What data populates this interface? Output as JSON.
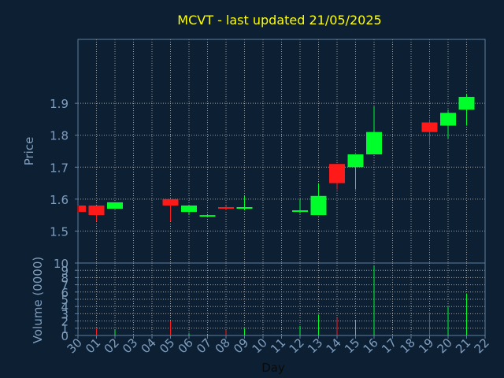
{
  "colors": {
    "background": "#0d1f33",
    "title": "#ffff00",
    "axis_text": "#7f9fbf",
    "frame": "#5f7f9f",
    "grid": "#a0a0a0",
    "up": "#00ff2a",
    "down": "#ff1a1a",
    "volume_tick": "#a0a0a0"
  },
  "chart_data": [
    {
      "type": "candlestick",
      "title": "MCVT - last updated 21/05/2025",
      "ylabel": "Price",
      "ylim": [
        1.4,
        2.1
      ],
      "yticks": [
        1.5,
        1.6,
        1.7,
        1.8,
        1.9
      ],
      "ytick_labels": [
        "1.5",
        "1.6",
        "1.7",
        "1.8",
        "1.9"
      ],
      "grid": true,
      "candles": [
        {
          "day": "30",
          "open": 1.58,
          "high": 1.58,
          "low": 1.56,
          "close": 1.56
        },
        {
          "day": "01",
          "open": 1.58,
          "high": 1.58,
          "low": 1.53,
          "close": 1.55
        },
        {
          "day": "02",
          "open": 1.57,
          "high": 1.59,
          "low": 1.57,
          "close": 1.59
        },
        {
          "day": "05",
          "open": 1.6,
          "high": 1.6,
          "low": 1.53,
          "close": 1.58
        },
        {
          "day": "06",
          "open": 1.56,
          "high": 1.58,
          "low": 1.55,
          "close": 1.58
        },
        {
          "day": "07",
          "open": 1.545,
          "high": 1.55,
          "low": 1.545,
          "close": 1.55
        },
        {
          "day": "08",
          "open": 1.575,
          "high": 1.58,
          "low": 1.565,
          "close": 1.57
        },
        {
          "day": "09",
          "open": 1.57,
          "high": 1.61,
          "low": 1.565,
          "close": 1.575
        },
        {
          "day": "12",
          "open": 1.56,
          "high": 1.6,
          "low": 1.555,
          "close": 1.565
        },
        {
          "day": "13",
          "open": 1.55,
          "high": 1.65,
          "low": 1.55,
          "close": 1.61
        },
        {
          "day": "14",
          "open": 1.71,
          "high": 1.71,
          "low": 1.63,
          "close": 1.65
        },
        {
          "day": "15",
          "open": 1.7,
          "high": 1.74,
          "low": 1.63,
          "close": 1.74
        },
        {
          "day": "16",
          "open": 1.74,
          "high": 1.89,
          "low": 1.74,
          "close": 1.81
        },
        {
          "day": "19",
          "open": 1.84,
          "high": 1.85,
          "low": 1.77,
          "close": 1.81
        },
        {
          "day": "20",
          "open": 1.83,
          "high": 1.88,
          "low": 1.79,
          "close": 1.87
        },
        {
          "day": "21",
          "open": 1.88,
          "high": 1.93,
          "low": 1.83,
          "close": 1.92
        }
      ]
    },
    {
      "type": "bar",
      "xlabel": "Day",
      "ylabel": "Volume (0000)",
      "ylim": [
        0,
        10
      ],
      "yticks": [
        0,
        1,
        2,
        3,
        4,
        5,
        6,
        7,
        8,
        9,
        10
      ],
      "ytick_labels": [
        "0",
        "1",
        "2",
        "3",
        "4",
        "5",
        "6",
        "7",
        "8",
        "9",
        "10"
      ],
      "x_tick_labels": [
        "30",
        "01",
        "02",
        "03",
        "04",
        "05",
        "06",
        "07",
        "08",
        "09",
        "10",
        "11",
        "12",
        "13",
        "14",
        "15",
        "16",
        "17",
        "18",
        "19",
        "20",
        "21",
        "22"
      ],
      "volumes": [
        {
          "day": "30",
          "value": 0.1,
          "direction": "down"
        },
        {
          "day": "01",
          "value": 1.0,
          "direction": "down"
        },
        {
          "day": "02",
          "value": 0.8,
          "direction": "up"
        },
        {
          "day": "05",
          "value": 2.0,
          "direction": "down"
        },
        {
          "day": "06",
          "value": 0.3,
          "direction": "up"
        },
        {
          "day": "07",
          "value": 0.1,
          "direction": "up"
        },
        {
          "day": "08",
          "value": 0.8,
          "direction": "down"
        },
        {
          "day": "09",
          "value": 1.0,
          "direction": "up"
        },
        {
          "day": "12",
          "value": 1.3,
          "direction": "up"
        },
        {
          "day": "13",
          "value": 2.9,
          "direction": "up"
        },
        {
          "day": "14",
          "value": 2.4,
          "direction": "down"
        },
        {
          "day": "15",
          "value": 2.1,
          "direction": "up"
        },
        {
          "day": "16",
          "value": 9.6,
          "direction": "up"
        },
        {
          "day": "19",
          "value": 3.2,
          "direction": "down"
        },
        {
          "day": "20",
          "value": 4.0,
          "direction": "up"
        },
        {
          "day": "21",
          "value": 5.8,
          "direction": "up"
        }
      ]
    }
  ]
}
